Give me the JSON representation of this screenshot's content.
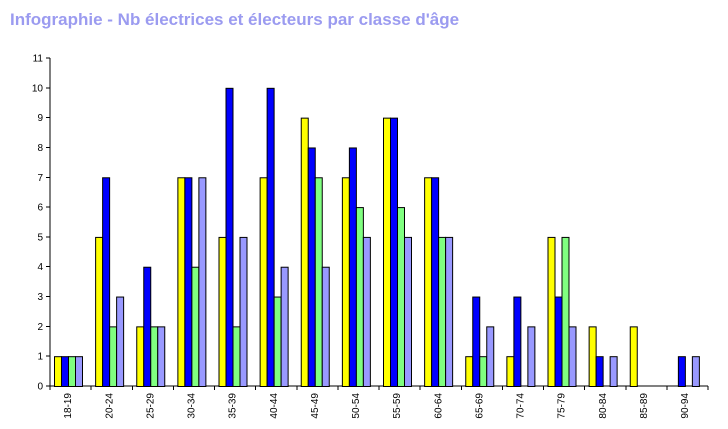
{
  "chart_data": {
    "type": "bar",
    "title": "Infographie - Nb électrices et électeurs par classe d'âge",
    "xlabel": "",
    "ylabel": "",
    "ylim": [
      0,
      11
    ],
    "yticks": [
      0,
      1,
      2,
      3,
      4,
      5,
      6,
      7,
      8,
      9,
      10,
      11
    ],
    "grid": false,
    "legend": "none",
    "categories": [
      "18-19",
      "20-24",
      "25-29",
      "30-34",
      "35-39",
      "40-44",
      "45-49",
      "50-54",
      "55-59",
      "60-64",
      "65-69",
      "70-74",
      "75-79",
      "80-84",
      "85-89",
      "90-94"
    ],
    "series": [
      {
        "color": "#ffff00",
        "values": [
          1,
          5,
          2,
          7,
          5,
          7,
          9,
          7,
          9,
          7,
          1,
          1,
          5,
          2,
          2,
          0
        ]
      },
      {
        "color": "#0000ff",
        "values": [
          1,
          7,
          4,
          7,
          10,
          10,
          8,
          8,
          9,
          7,
          3,
          3,
          3,
          1,
          0,
          1
        ]
      },
      {
        "color": "#80ff80",
        "values": [
          1,
          2,
          2,
          4,
          2,
          3,
          7,
          6,
          6,
          5,
          1,
          0,
          5,
          0,
          0,
          0
        ]
      },
      {
        "color": "#9999ff",
        "values": [
          1,
          3,
          2,
          7,
          5,
          4,
          4,
          5,
          5,
          5,
          2,
          2,
          2,
          1,
          0,
          1
        ]
      }
    ]
  }
}
